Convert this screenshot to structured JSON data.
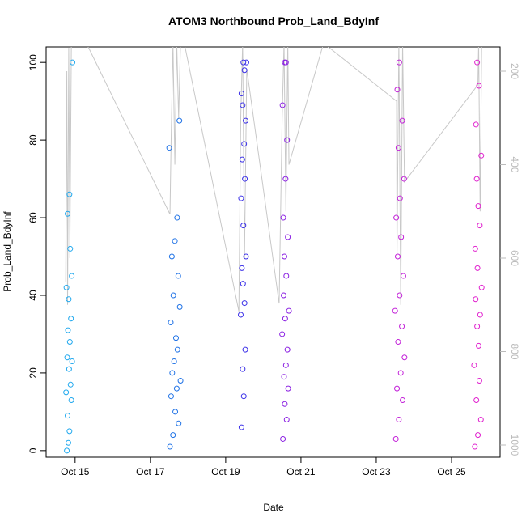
{
  "chart_data": {
    "type": "scatter",
    "title": "ATOM3 Northbound Prob_Land_BdyInf",
    "x_label": "Date",
    "y_label": "Prob_Land_BdyInf",
    "xlim": [
      14.23,
      26.29
    ],
    "xticks": [
      {
        "value": 15,
        "label": "Oct 15"
      },
      {
        "value": 17,
        "label": "Oct 17"
      },
      {
        "value": 19,
        "label": "Oct 19"
      },
      {
        "value": 21,
        "label": "Oct 21"
      },
      {
        "value": 23,
        "label": "Oct 23"
      },
      {
        "value": 25,
        "label": "Oct 25"
      }
    ],
    "ylim": [
      -1.7,
      104
    ],
    "yticks": [
      0,
      20,
      40,
      60,
      80,
      100
    ],
    "y2lim": [
      1026,
      148
    ],
    "y2ticks": [
      200,
      400,
      600,
      800,
      1000
    ],
    "y2_color": "#bbbbbb",
    "series": [
      {
        "color": "#1fa8ee",
        "x": [
          14.78,
          14.82,
          14.85,
          14.8,
          14.9,
          14.76,
          14.88,
          14.84,
          14.92,
          14.79,
          14.86,
          14.81,
          14.89,
          14.83,
          14.77,
          14.91,
          14.87,
          14.8,
          14.85,
          14.93
        ],
        "values": [
          0,
          2,
          5,
          9,
          13,
          15,
          17,
          21,
          23,
          24,
          28,
          31,
          34,
          39,
          42,
          45,
          52,
          61,
          66,
          100
        ]
      },
      {
        "color": "#1f72e6",
        "x": [
          17.52,
          17.6,
          17.75,
          17.66,
          17.55,
          17.7,
          17.8,
          17.58,
          17.63,
          17.72,
          17.68,
          17.54,
          17.78,
          17.61,
          17.74,
          17.57,
          17.65,
          17.71,
          17.5,
          17.77
        ],
        "values": [
          1,
          4,
          7,
          10,
          14,
          16,
          18,
          20,
          23,
          26,
          29,
          33,
          37,
          40,
          45,
          50,
          54,
          60,
          78,
          85
        ]
      },
      {
        "color": "#3a2fe8",
        "x": [
          19.42,
          19.48,
          19.45,
          19.52,
          19.4,
          19.5,
          19.46,
          19.43,
          19.54,
          19.47,
          19.41,
          19.51,
          19.44,
          19.49,
          19.53,
          19.45,
          19.42,
          19.5,
          19.47,
          19.55
        ],
        "values": [
          6,
          14,
          21,
          26,
          35,
          38,
          43,
          47,
          50,
          58,
          65,
          70,
          75,
          79,
          85,
          89,
          92,
          98,
          100,
          100
        ]
      },
      {
        "color": "#8a1fe2",
        "x": [
          20.52,
          20.62,
          20.57,
          20.66,
          20.55,
          20.6,
          20.64,
          20.5,
          20.58,
          20.68,
          20.54,
          20.61,
          20.56,
          20.65,
          20.53,
          20.59,
          20.63,
          20.51,
          20.57,
          20.6
        ],
        "values": [
          3,
          8,
          12,
          16,
          19,
          22,
          26,
          30,
          34,
          36,
          40,
          45,
          50,
          55,
          60,
          70,
          80,
          89,
          100,
          100
        ]
      },
      {
        "color": "#c21fd8",
        "x": [
          23.52,
          23.6,
          23.7,
          23.55,
          23.65,
          23.75,
          23.58,
          23.68,
          23.5,
          23.62,
          23.72,
          23.57,
          23.66,
          23.53,
          23.63,
          23.74,
          23.59,
          23.69,
          23.56,
          23.61
        ],
        "values": [
          3,
          8,
          13,
          16,
          20,
          24,
          28,
          32,
          36,
          40,
          45,
          50,
          55,
          60,
          65,
          70,
          78,
          85,
          93,
          100
        ]
      },
      {
        "color": "#e01fce",
        "x": [
          25.62,
          25.7,
          25.78,
          25.66,
          25.74,
          25.6,
          25.72,
          25.68,
          25.76,
          25.64,
          25.8,
          25.69,
          25.63,
          25.75,
          25.71,
          25.67,
          25.79,
          25.65,
          25.73,
          25.68
        ],
        "values": [
          1,
          4,
          8,
          13,
          18,
          22,
          27,
          32,
          35,
          39,
          42,
          47,
          52,
          58,
          63,
          70,
          76,
          84,
          94,
          100
        ]
      },
      {
        "type": "line",
        "axis": "y2",
        "color": "#c8c8c8",
        "x": [
          14.75,
          14.78,
          14.8,
          14.83,
          14.86,
          14.9,
          15.3,
          17.52,
          17.55,
          17.6,
          17.65,
          17.7,
          17.75,
          17.8,
          17.9,
          19.35,
          19.4,
          19.45,
          19.5,
          19.56,
          20.42,
          20.5,
          20.55,
          20.6,
          20.65,
          20.68,
          21.6,
          23.54,
          23.55,
          23.6,
          23.65,
          23.7,
          23.75,
          25.7,
          25.72,
          25.76,
          25.8
        ],
        "values": [
          650,
          200,
          700,
          150,
          600,
          140,
          140,
          506,
          350,
          140,
          400,
          140,
          300,
          140,
          140,
          714,
          300,
          140,
          600,
          195,
          697,
          300,
          140,
          500,
          140,
          400,
          140,
          264,
          600,
          140,
          700,
          140,
          437,
          229,
          140,
          500,
          140
        ]
      }
    ]
  }
}
